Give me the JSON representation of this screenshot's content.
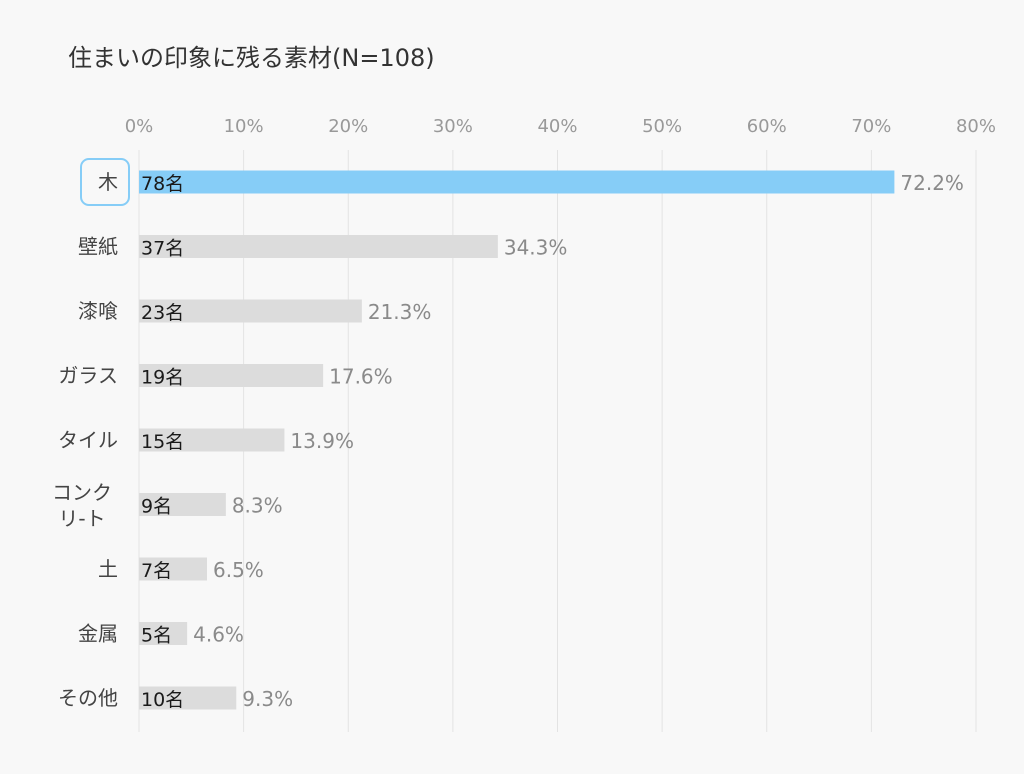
{
  "chart_data": {
    "type": "bar",
    "orientation": "horizontal",
    "title": "住まいの印象に残る素材(N=108)",
    "xlim": [
      0,
      80
    ],
    "x_ticks": [
      "0%",
      "10%",
      "20%",
      "30%",
      "40%",
      "50%",
      "60%",
      "70%",
      "80%"
    ],
    "grid": true,
    "highlight_color": "#86cdf7",
    "bar_color": "#dcdcdc",
    "categories": [
      {
        "label": [
          "木"
        ],
        "count": "78名",
        "value": 72.2,
        "value_label": "72.2%",
        "highlight": true
      },
      {
        "label": [
          "壁紙"
        ],
        "count": "37名",
        "value": 34.3,
        "value_label": "34.3%"
      },
      {
        "label": [
          "漆喰"
        ],
        "count": "23名",
        "value": 21.3,
        "value_label": "21.3%"
      },
      {
        "label": [
          "ガラス"
        ],
        "count": "19名",
        "value": 17.6,
        "value_label": "17.6%"
      },
      {
        "label": [
          "タイル"
        ],
        "count": "15名",
        "value": 13.9,
        "value_label": "13.9%"
      },
      {
        "label": [
          "コンク",
          "リ-ト"
        ],
        "count": "9名",
        "value": 8.3,
        "value_label": "8.3%"
      },
      {
        "label": [
          "土"
        ],
        "count": "7名",
        "value": 6.5,
        "value_label": "6.5%"
      },
      {
        "label": [
          "金属"
        ],
        "count": "5名",
        "value": 4.6,
        "value_label": "4.6%"
      },
      {
        "label": [
          "その他"
        ],
        "count": "10名",
        "value": 9.3,
        "value_label": "9.3%"
      }
    ]
  }
}
